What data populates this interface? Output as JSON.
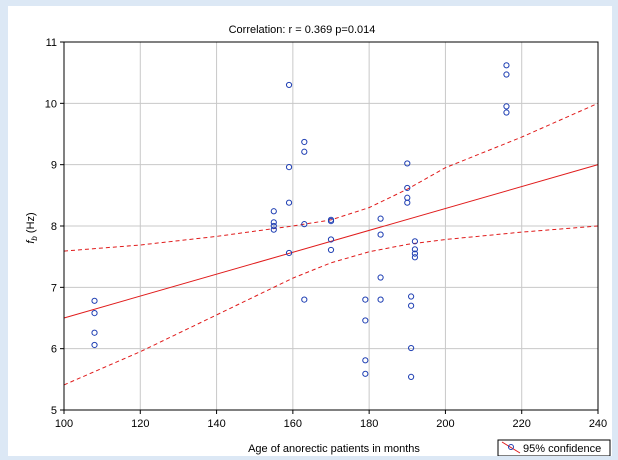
{
  "chart_data": {
    "type": "scatter",
    "title": "Correlation: r = 0.369  p=0.014",
    "xlabel": "Age of anorectic patients in months",
    "ylabel_main": "f",
    "ylabel_sub": "b",
    "ylabel_unit": " (Hz)",
    "xlim": [
      100,
      240
    ],
    "ylim": [
      5,
      11
    ],
    "x_ticks": [
      100,
      120,
      140,
      160,
      180,
      200,
      220,
      240
    ],
    "y_ticks": [
      5,
      6,
      7,
      8,
      9,
      10,
      11
    ],
    "grid": true,
    "legend_position": "bottom-right",
    "legend_label": "95% confidence",
    "colors": {
      "points": "#1f3fb3",
      "fit": "#e01b1b",
      "grid": "#c8c8c8"
    },
    "points": [
      {
        "x": 108,
        "y": 6.78
      },
      {
        "x": 108,
        "y": 6.58
      },
      {
        "x": 108,
        "y": 6.26
      },
      {
        "x": 108,
        "y": 6.06
      },
      {
        "x": 155,
        "y": 8.24
      },
      {
        "x": 155,
        "y": 8.06
      },
      {
        "x": 155,
        "y": 8.0
      },
      {
        "x": 155,
        "y": 7.94
      },
      {
        "x": 159,
        "y": 10.3
      },
      {
        "x": 159,
        "y": 8.96
      },
      {
        "x": 159,
        "y": 8.38
      },
      {
        "x": 159,
        "y": 7.56
      },
      {
        "x": 163,
        "y": 9.37
      },
      {
        "x": 163,
        "y": 9.21
      },
      {
        "x": 163,
        "y": 8.03
      },
      {
        "x": 163,
        "y": 6.8
      },
      {
        "x": 170,
        "y": 8.1
      },
      {
        "x": 170,
        "y": 8.08
      },
      {
        "x": 170,
        "y": 7.78
      },
      {
        "x": 170,
        "y": 7.61
      },
      {
        "x": 179,
        "y": 6.8
      },
      {
        "x": 179,
        "y": 6.46
      },
      {
        "x": 179,
        "y": 5.81
      },
      {
        "x": 179,
        "y": 5.59
      },
      {
        "x": 183,
        "y": 8.12
      },
      {
        "x": 183,
        "y": 7.86
      },
      {
        "x": 183,
        "y": 7.16
      },
      {
        "x": 183,
        "y": 6.8
      },
      {
        "x": 190,
        "y": 9.02
      },
      {
        "x": 190,
        "y": 8.62
      },
      {
        "x": 190,
        "y": 8.46
      },
      {
        "x": 190,
        "y": 8.38
      },
      {
        "x": 191,
        "y": 6.85
      },
      {
        "x": 191,
        "y": 6.7
      },
      {
        "x": 191,
        "y": 6.01
      },
      {
        "x": 191,
        "y": 5.54
      },
      {
        "x": 192,
        "y": 7.75
      },
      {
        "x": 192,
        "y": 7.62
      },
      {
        "x": 192,
        "y": 7.55
      },
      {
        "x": 192,
        "y": 7.49
      },
      {
        "x": 216,
        "y": 10.62
      },
      {
        "x": 216,
        "y": 10.47
      },
      {
        "x": 216,
        "y": 9.95
      },
      {
        "x": 216,
        "y": 9.85
      }
    ],
    "fit_line": [
      {
        "x": 100,
        "y": 6.5
      },
      {
        "x": 240,
        "y": 9.0
      }
    ],
    "ci_upper": [
      {
        "x": 100,
        "y": 7.59
      },
      {
        "x": 120,
        "y": 7.69
      },
      {
        "x": 140,
        "y": 7.83
      },
      {
        "x": 160,
        "y": 8.0
      },
      {
        "x": 170,
        "y": 8.1
      },
      {
        "x": 180,
        "y": 8.3
      },
      {
        "x": 190,
        "y": 8.6
      },
      {
        "x": 200,
        "y": 8.95
      },
      {
        "x": 220,
        "y": 9.45
      },
      {
        "x": 240,
        "y": 10.0
      }
    ],
    "ci_lower": [
      {
        "x": 100,
        "y": 5.41
      },
      {
        "x": 120,
        "y": 5.95
      },
      {
        "x": 140,
        "y": 6.55
      },
      {
        "x": 160,
        "y": 7.15
      },
      {
        "x": 170,
        "y": 7.4
      },
      {
        "x": 180,
        "y": 7.58
      },
      {
        "x": 190,
        "y": 7.7
      },
      {
        "x": 200,
        "y": 7.78
      },
      {
        "x": 220,
        "y": 7.9
      },
      {
        "x": 240,
        "y": 8.0
      }
    ]
  }
}
